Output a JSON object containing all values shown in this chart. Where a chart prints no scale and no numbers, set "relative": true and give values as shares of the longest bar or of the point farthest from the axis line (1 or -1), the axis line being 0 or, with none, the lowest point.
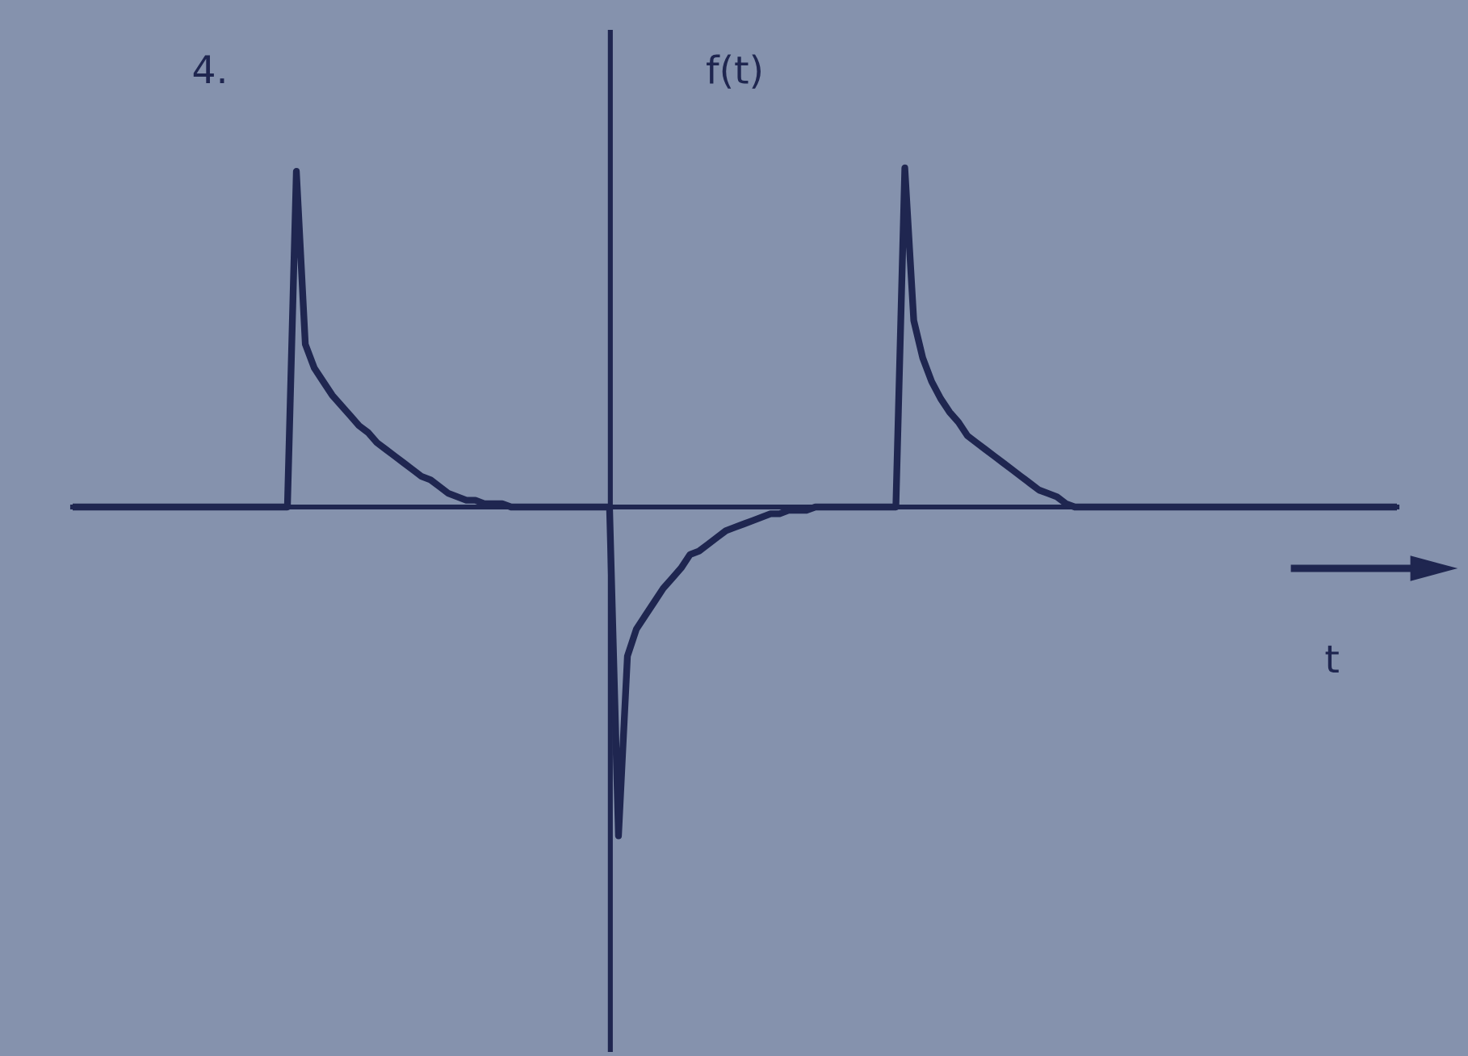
{
  "chart_data": {
    "type": "line",
    "title": "4.",
    "xlabel": "t",
    "ylabel": "f(t)",
    "relative": true,
    "categories": [
      null,
      null,
      null,
      null,
      null,
      null,
      null,
      null,
      null,
      null,
      null,
      null,
      null,
      null,
      null,
      null,
      null,
      null,
      null,
      null,
      null,
      null,
      null,
      null,
      null,
      null,
      null,
      null,
      null,
      null,
      null,
      null,
      null,
      null,
      null,
      null,
      null,
      null,
      null,
      null,
      null,
      null,
      null,
      null,
      null,
      null,
      null,
      null,
      null,
      null,
      null,
      null,
      null,
      null,
      null,
      null,
      null,
      null,
      null,
      null,
      null,
      null,
      null,
      null,
      null,
      null,
      null,
      null,
      null,
      null,
      null,
      null,
      null,
      null,
      null,
      null,
      null,
      null,
      null,
      null,
      null,
      null,
      null,
      null,
      null,
      null,
      null,
      null,
      null,
      null,
      null,
      null,
      null,
      null,
      null,
      null,
      null,
      null,
      null,
      null,
      null,
      null,
      null,
      null,
      null,
      null,
      null,
      null,
      null,
      null,
      null,
      null,
      null,
      null,
      null,
      null,
      null,
      null,
      null,
      null,
      null,
      null,
      null,
      null,
      null,
      null,
      null,
      null,
      null,
      null,
      null,
      null,
      null,
      null,
      null,
      null,
      null,
      null,
      null,
      null,
      null,
      null,
      null,
      null,
      null,
      null,
      null,
      null,
      null
    ],
    "series": [
      {
        "color": "#1f2650",
        "values": [
          0,
          0,
          0,
          0,
          0,
          0,
          0,
          0,
          0,
          0,
          0,
          0,
          0,
          0,
          0,
          0,
          0,
          0,
          0,
          0,
          0,
          0,
          0,
          0,
          0,
          0.99,
          0.48,
          0.41,
          0.37,
          0.33,
          0.3,
          0.27,
          0.24,
          0.22,
          0.19,
          0.17,
          0.15,
          0.13,
          0.11,
          0.09,
          0.08,
          0.06,
          0.04,
          0.03,
          0.02,
          0.02,
          0.01,
          0.01,
          0.01,
          0,
          0,
          0,
          0,
          0,
          0,
          0,
          0,
          0,
          0,
          0,
          0,
          -0.97,
          -0.44,
          -0.36,
          -0.32,
          -0.28,
          -0.24,
          -0.21,
          -0.18,
          -0.14,
          -0.13,
          -0.11,
          -0.09,
          -0.07,
          -0.06,
          -0.05,
          -0.04,
          -0.03,
          -0.02,
          -0.02,
          -0.01,
          -0.01,
          -0.01,
          0,
          0,
          0,
          0,
          0,
          0,
          0,
          0,
          0,
          0,
          1,
          0.55,
          0.44,
          0.37,
          0.32,
          0.28,
          0.25,
          0.21,
          0.19,
          0.17,
          0.15,
          0.13,
          0.11,
          0.09,
          0.07,
          0.05,
          0.04,
          0.03,
          0.01,
          0,
          0,
          0,
          0,
          0,
          0,
          0,
          0,
          0,
          0,
          0,
          0,
          0,
          0,
          0,
          0,
          0,
          0,
          0,
          0,
          0,
          0,
          0,
          0,
          0,
          0,
          0,
          0,
          0,
          0,
          0,
          0,
          0,
          0,
          0,
          0,
          0
        ]
      }
    ]
  }
}
